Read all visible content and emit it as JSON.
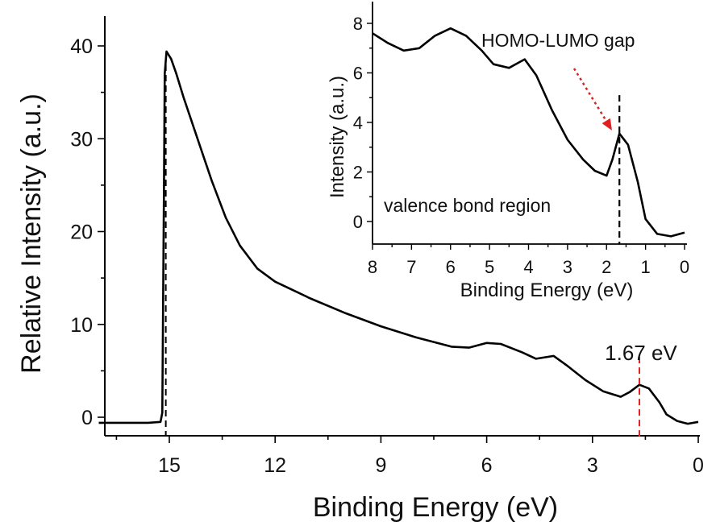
{
  "chart_data": [
    {
      "type": "line",
      "xlabel": "Binding Energy (eV)",
      "ylabel": "Relative Intensity (a.u.)",
      "xlim": [
        17,
        0
      ],
      "ylim": [
        -2,
        42
      ],
      "x_reversed": true,
      "x_ticks": [
        15,
        12,
        9,
        6,
        3,
        0
      ],
      "y_ticks": [
        0,
        10,
        20,
        30,
        40
      ],
      "series": [
        {
          "color": "#000000",
          "points": [
            [
              17.0,
              -0.6
            ],
            [
              15.6,
              -0.6
            ],
            [
              15.25,
              -0.5
            ],
            [
              15.2,
              0.5
            ],
            [
              15.18,
              10
            ],
            [
              15.15,
              25
            ],
            [
              15.13,
              37
            ],
            [
              15.08,
              39.4
            ],
            [
              14.95,
              38.6
            ],
            [
              14.8,
              37.0
            ],
            [
              14.6,
              34.5
            ],
            [
              14.2,
              30.0
            ],
            [
              13.8,
              25.5
            ],
            [
              13.4,
              21.5
            ],
            [
              13.0,
              18.5
            ],
            [
              12.5,
              16.0
            ],
            [
              12.0,
              14.6
            ],
            [
              11.0,
              12.8
            ],
            [
              10.0,
              11.2
            ],
            [
              9.0,
              9.8
            ],
            [
              8.0,
              8.6
            ],
            [
              7.0,
              7.6
            ],
            [
              6.5,
              7.5
            ],
            [
              6.0,
              8.0
            ],
            [
              5.6,
              7.9
            ],
            [
              5.0,
              7.0
            ],
            [
              4.6,
              6.3
            ],
            [
              4.1,
              6.6
            ],
            [
              3.7,
              5.5
            ],
            [
              3.2,
              4.0
            ],
            [
              2.7,
              2.8
            ],
            [
              2.2,
              2.2
            ],
            [
              1.95,
              2.7
            ],
            [
              1.67,
              3.5
            ],
            [
              1.4,
              3.1
            ],
            [
              1.1,
              1.6
            ],
            [
              0.9,
              0.3
            ],
            [
              0.6,
              -0.4
            ],
            [
              0.3,
              -0.7
            ],
            [
              0.0,
              -0.5
            ]
          ]
        }
      ],
      "markers": [
        {
          "x": 15.1,
          "style": "dashed",
          "color": "#000000"
        },
        {
          "x": 1.67,
          "style": "dashed",
          "color": "#e02020",
          "label": "1.67 eV"
        }
      ]
    },
    {
      "type": "line",
      "inset": true,
      "xlabel": "Binding Energy (eV)",
      "ylabel": "Intensity (a.u.)",
      "xlim": [
        8,
        0
      ],
      "ylim": [
        -0.9,
        8.9
      ],
      "x_reversed": true,
      "x_ticks": [
        8,
        7,
        6,
        5,
        4,
        3,
        2,
        1,
        0
      ],
      "y_ticks": [
        0,
        2,
        4,
        6,
        8
      ],
      "series": [
        {
          "color": "#000000",
          "points": [
            [
              8.0,
              7.6
            ],
            [
              7.6,
              7.2
            ],
            [
              7.2,
              6.9
            ],
            [
              6.8,
              7.0
            ],
            [
              6.4,
              7.5
            ],
            [
              6.0,
              7.8
            ],
            [
              5.6,
              7.5
            ],
            [
              5.2,
              6.9
            ],
            [
              4.9,
              6.35
            ],
            [
              4.5,
              6.2
            ],
            [
              4.1,
              6.55
            ],
            [
              3.8,
              5.9
            ],
            [
              3.4,
              4.5
            ],
            [
              3.0,
              3.3
            ],
            [
              2.6,
              2.5
            ],
            [
              2.3,
              2.05
            ],
            [
              2.0,
              1.85
            ],
            [
              1.85,
              2.5
            ],
            [
              1.67,
              3.55
            ],
            [
              1.45,
              3.1
            ],
            [
              1.2,
              1.6
            ],
            [
              1.0,
              0.1
            ],
            [
              0.7,
              -0.5
            ],
            [
              0.35,
              -0.6
            ],
            [
              0.0,
              -0.45
            ]
          ]
        }
      ],
      "markers": [
        {
          "x": 1.67,
          "style": "dashed",
          "color": "#000000"
        }
      ],
      "annotations": {
        "gap_label": "HOMO-LUMO gap",
        "region_label": "valence bond region"
      },
      "arrow_color": "#e02020"
    }
  ]
}
